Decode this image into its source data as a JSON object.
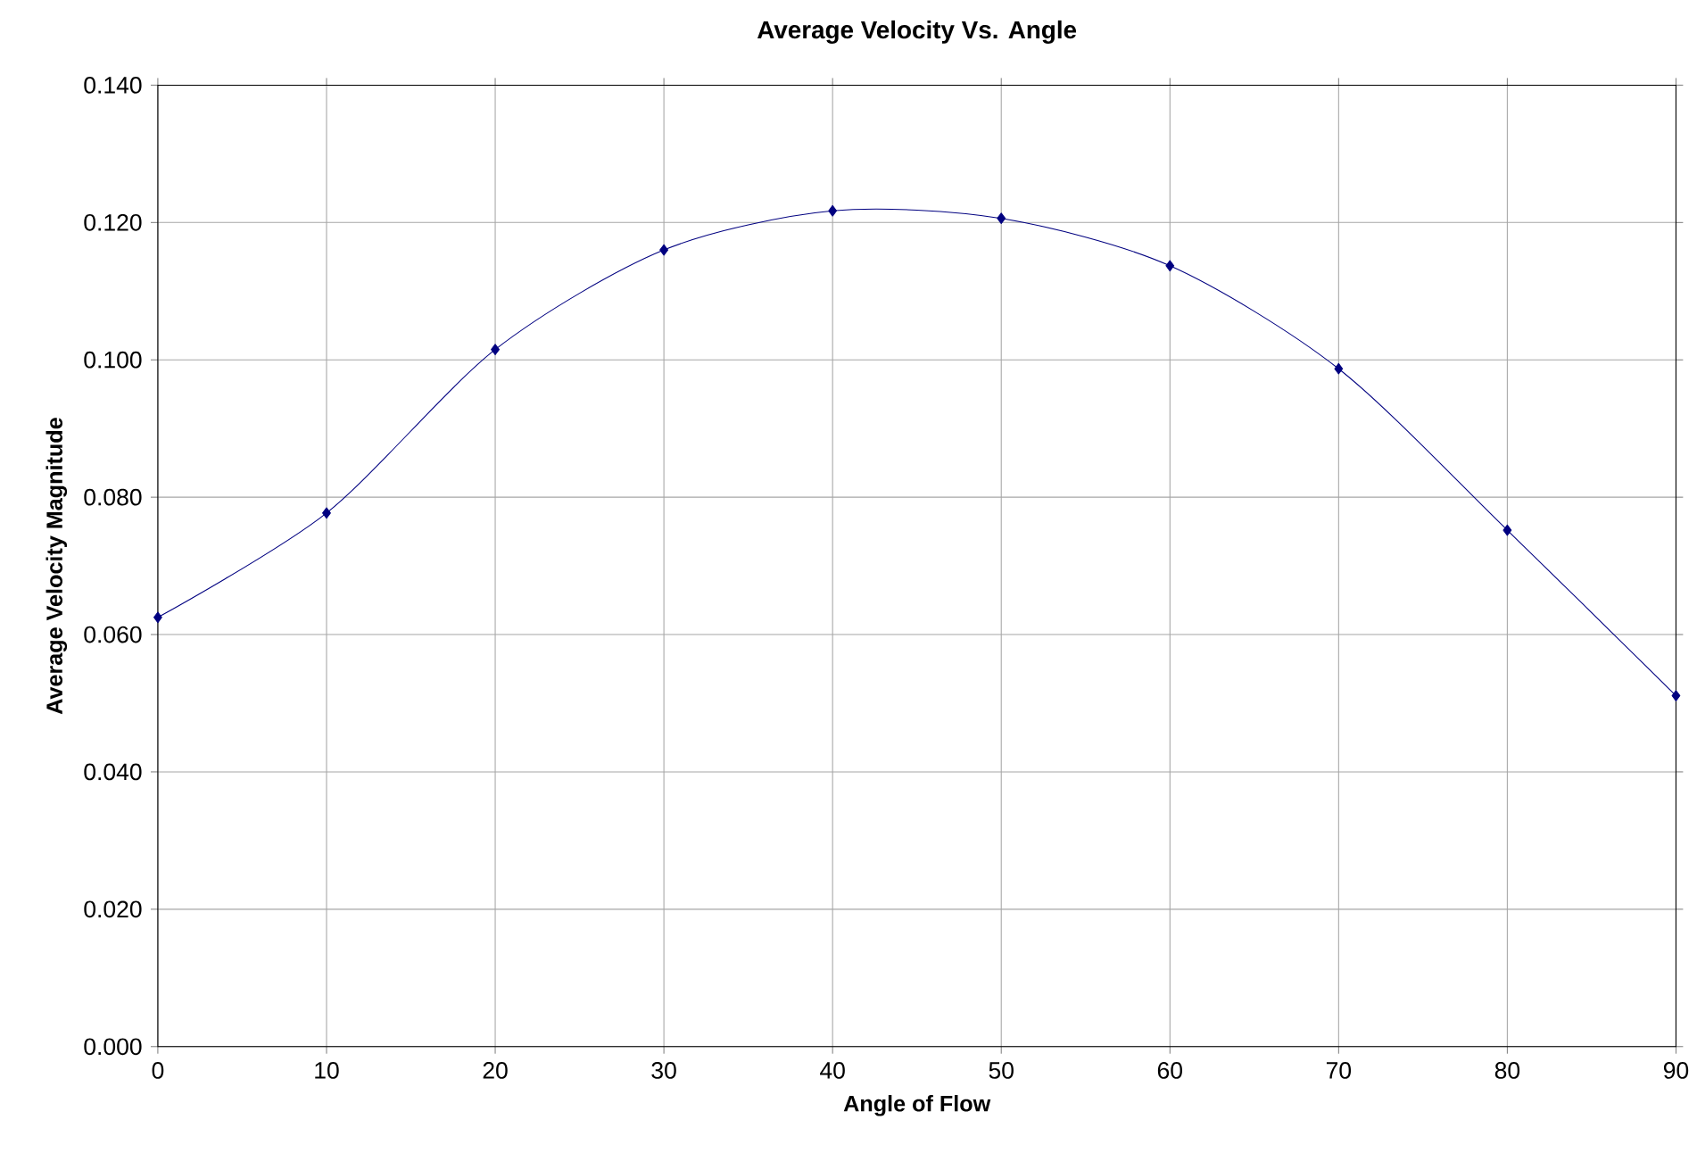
{
  "chart_data": {
    "type": "line",
    "title": "Average Velocity Vs. Angle",
    "xlabel": "Angle of Flow",
    "ylabel": "Average Velocity Magnitude",
    "x": [
      0,
      10,
      20,
      30,
      40,
      50,
      60,
      70,
      80,
      90
    ],
    "series": [
      {
        "color": "#000080",
        "values": [
          0.0625,
          0.0777,
          0.1015,
          0.116,
          0.1217,
          0.1206,
          0.1137,
          0.0987,
          0.0752,
          0.0511
        ]
      }
    ],
    "xlim": [
      0,
      90
    ],
    "ylim": [
      0,
      0.14
    ],
    "xticks": [
      0,
      10,
      20,
      30,
      40,
      50,
      60,
      70,
      80,
      90
    ],
    "yticks": [
      {
        "value": 0,
        "label": "0.000"
      },
      {
        "value": 0.02,
        "label": "0.020"
      },
      {
        "value": 0.04,
        "label": "0.040"
      },
      {
        "value": 0.06,
        "label": "0.060"
      },
      {
        "value": 0.08,
        "label": "0.080"
      },
      {
        "value": 0.1,
        "label": "0.100"
      },
      {
        "value": 0.12,
        "label": "0.120"
      },
      {
        "value": 0.14,
        "label": "0.140"
      }
    ],
    "grid": true,
    "marker": "diamond",
    "line_style": "solid"
  }
}
